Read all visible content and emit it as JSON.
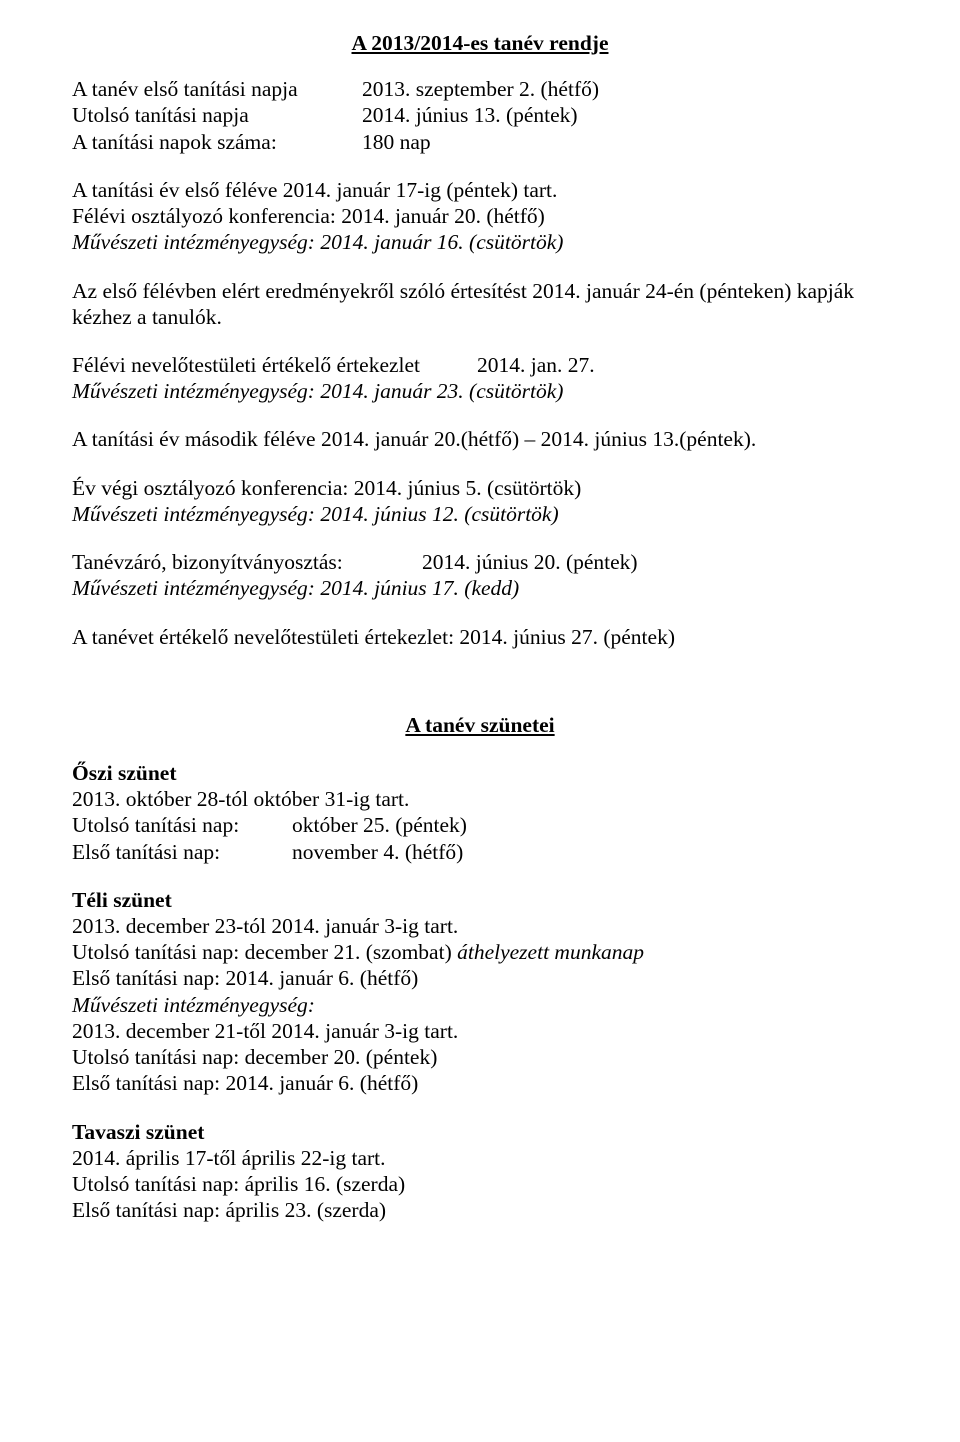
{
  "title": "A 2013/2014-es  tanév rendje",
  "intro": {
    "l1a": "A tanév első tanítási napja",
    "l1b": "2013. szeptember 2. (hétfő)",
    "l2a": "Utolsó tanítási napja",
    "l2b": "2014. június 13. (péntek)",
    "l3a": "A tanítási napok száma:",
    "l3b": "180 nap"
  },
  "p1": {
    "l1": "A tanítási év első féléve 2014. január 17-ig (péntek) tart.",
    "l2": "Félévi osztályozó konferencia: 2014. január 20. (hétfő)",
    "l3": "Művészeti intézményegység: 2014. január 16. (csütörtök)"
  },
  "p2": "Az első félévben elért eredményekről szóló értesítést 2014. január 24-én (pénteken) kapják kézhez a tanulók.",
  "p3": {
    "l1a": "Félévi nevelőtestületi értékelő értekezlet",
    "l1b": "2014. jan. 27.",
    "l2": "Művészeti intézményegység: 2014. január 23. (csütörtök)"
  },
  "p4": "A tanítási év második féléve 2014. január 20.(hétfő) – 2014. június 13.(péntek).",
  "p5": {
    "l1": "Év végi osztályozó konferencia: 2014. június 5. (csütörtök)",
    "l2": "Művészeti intézményegység: 2014. június 12. (csütörtök)"
  },
  "p6": {
    "l1a": "Tanévzáró, bizonyítványosztás:",
    "l1b": "2014. június 20. (péntek)",
    "l2": "Művészeti intézményegység: 2014. június 17. (kedd)"
  },
  "p7": "A tanévet értékelő nevelőtestületi értekezlet:  2014. június 27. (péntek)",
  "subtitle": "A tanév szünetei",
  "oszi": {
    "h": "Őszi szünet",
    "l1": "2013. október 28-tól október 31-ig tart.",
    "l2a": "Utolsó tanítási nap:",
    "l2b": "október 25. (péntek)",
    "l3a": "Első  tanítási nap:",
    "l3b": "november 4. (hétfő)"
  },
  "teli": {
    "h": "Téli szünet",
    "l1": "2013. december 23-tól 2014. január 3-ig tart.",
    "l2a": "Utolsó tanítási nap: december 21. (szombat) ",
    "l2b": "áthelyezett munkanap",
    "l3": "Első  tanítási nap:  2014. január 6. (hétfő)",
    "l4": "Művészeti intézményegység:",
    "l5": "2013. december 21-től 2014. január 3-ig tart.",
    "l6": "Utolsó tanítási nap: december 20. (péntek)",
    "l7": "Első  tanítási nap:  2014. január 6. (hétfő)"
  },
  "tavaszi": {
    "h": "Tavaszi szünet",
    "l1": "2014. április 17-től április 22-ig tart.",
    "l2": "Utolsó tanítási nap: április 16. (szerda)",
    "l3": "Első tanítási nap: április 23. (szerda)"
  }
}
